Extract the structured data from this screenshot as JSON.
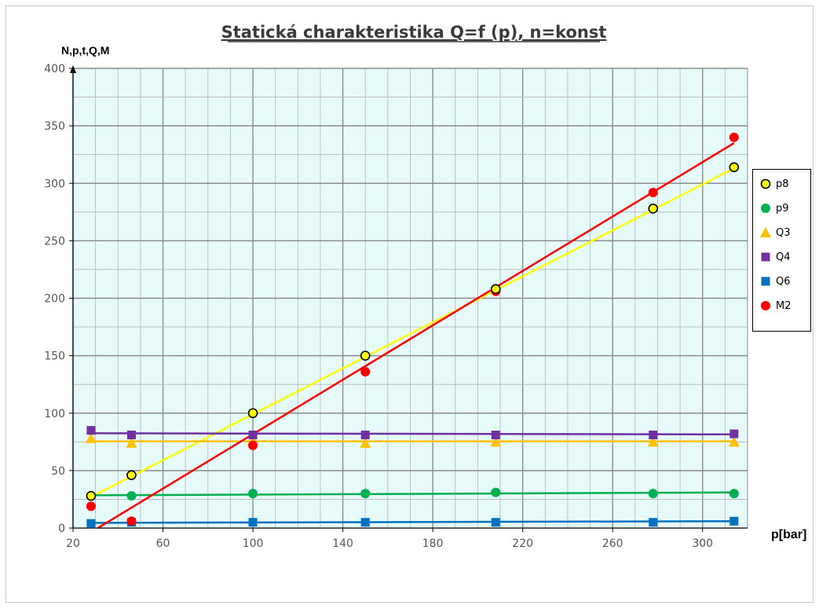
{
  "chart_data": {
    "type": "scatter",
    "title": "Statická charakteristika Q=f (p), n=konst",
    "ylabel": "N,p,t,Q,M",
    "xlabel": "p[bar]",
    "xlim": [
      20,
      320
    ],
    "ylim": [
      0,
      400
    ],
    "xticks": [
      "20",
      "60",
      "100",
      "140",
      "180",
      "220",
      "260",
      "300"
    ],
    "yticks": [
      "0",
      "50",
      "100",
      "150",
      "200",
      "250",
      "300",
      "350",
      "400"
    ],
    "grid": true,
    "background": "#e6fafa",
    "legend_position": "right",
    "series": [
      {
        "name": "p8",
        "marker": "circle",
        "color": "#ffff00",
        "edge": "#000000",
        "line_color": "#ffff00",
        "x": [
          28,
          46,
          100,
          150,
          208,
          278,
          314
        ],
        "y": [
          28,
          46,
          100,
          150,
          208,
          278,
          314
        ],
        "trend": [
          [
            28,
            27
          ],
          [
            314,
            313
          ]
        ]
      },
      {
        "name": "p9",
        "marker": "circle",
        "color": "#00b050",
        "edge": "#00b050",
        "line_color": "#00b050",
        "x": [
          28,
          46,
          100,
          150,
          208,
          278,
          314
        ],
        "y": [
          28,
          28,
          30,
          30,
          31,
          30,
          30
        ],
        "trend": [
          [
            28,
            28.5
          ],
          [
            314,
            31
          ]
        ]
      },
      {
        "name": "Q3",
        "marker": "triangle",
        "color": "#ffc000",
        "edge": "#ffc000",
        "line_color": "#ffc000",
        "x": [
          28,
          46,
          100,
          150,
          208,
          278,
          314
        ],
        "y": [
          78,
          74,
          76,
          74,
          75,
          75,
          75
        ],
        "trend": [
          [
            28,
            75.5
          ],
          [
            314,
            75.5
          ]
        ]
      },
      {
        "name": "Q4",
        "marker": "square",
        "color": "#7030a0",
        "edge": "#7030a0",
        "line_color": "#7030a0",
        "x": [
          28,
          46,
          100,
          150,
          208,
          278,
          314
        ],
        "y": [
          85,
          81,
          81,
          81,
          81,
          81,
          82
        ],
        "trend": [
          [
            28,
            82.5
          ],
          [
            314,
            81.5
          ]
        ]
      },
      {
        "name": "Q6",
        "marker": "square",
        "color": "#0070c0",
        "edge": "#0070c0",
        "line_color": "#0070c0",
        "x": [
          28,
          46,
          100,
          150,
          208,
          278,
          314
        ],
        "y": [
          4,
          5,
          5,
          5,
          5,
          5,
          6
        ],
        "trend": [
          [
            28,
            4.5
          ],
          [
            314,
            6
          ]
        ]
      },
      {
        "name": "M2",
        "marker": "circle",
        "color": "#ff0000",
        "edge": "#ff0000",
        "line_color": "#ff0000",
        "x": [
          28,
          46,
          100,
          150,
          208,
          278,
          314
        ],
        "y": [
          19,
          6,
          72,
          136,
          206,
          292,
          340
        ],
        "trend": [
          [
            31,
            0
          ],
          [
            314,
            335
          ]
        ]
      }
    ]
  }
}
